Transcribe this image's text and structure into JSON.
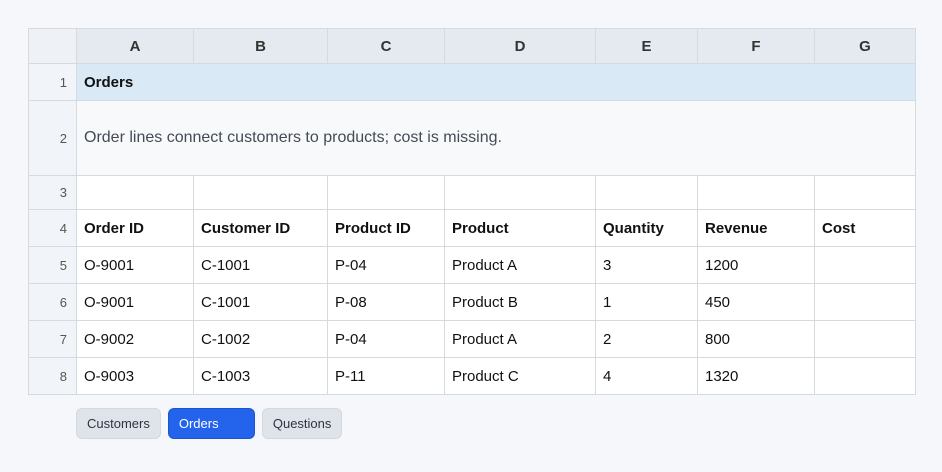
{
  "columns": [
    "A",
    "B",
    "C",
    "D",
    "E",
    "F",
    "G"
  ],
  "rows": {
    "numbers": [
      "1",
      "2",
      "3",
      "4",
      "5",
      "6",
      "7",
      "8"
    ],
    "title": "Orders",
    "note": "Order lines connect customers to products; cost is missing.",
    "headers": [
      "Order ID",
      "Customer ID",
      "Product ID",
      "Product",
      "Quantity",
      "Revenue",
      "Cost"
    ],
    "data": [
      [
        "O-9001",
        "C-1001",
        "P-04",
        "Product A",
        "3",
        "1200",
        ""
      ],
      [
        "O-9001",
        "C-1001",
        "P-08",
        "Product B",
        "1",
        "450",
        ""
      ],
      [
        "O-9002",
        "C-1002",
        "P-04",
        "Product A",
        "2",
        "800",
        ""
      ],
      [
        "O-9003",
        "C-1003",
        "P-11",
        "Product C",
        "4",
        "1320",
        ""
      ]
    ]
  },
  "sheet_tabs": [
    {
      "label": "Customers",
      "active": false
    },
    {
      "label": "Orders",
      "active": true
    },
    {
      "label": "Questions",
      "active": false
    }
  ]
}
